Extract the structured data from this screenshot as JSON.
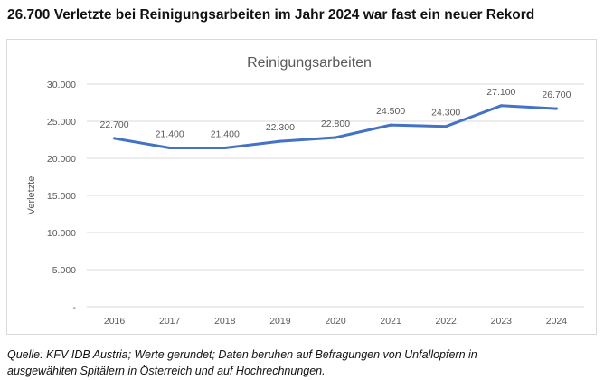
{
  "headline": "26.700 Verletzte bei Reinigungsarbeiten im Jahr 2024 war fast ein neuer Rekord",
  "source": {
    "line1": "Quelle: KFV IDB Austria; Werte gerundet; Daten beruhen auf Befragungen von Unfallopfern in",
    "line2": "ausgewählten Spitälern in Österreich und auf Hochrechnungen."
  },
  "colors": {
    "series_line": "#4472c4",
    "gridline": "#d9d9d9",
    "axis_text": "#595959",
    "title_text": "#595959"
  },
  "chart_data": {
    "type": "line",
    "title": "Reinigungsarbeiten",
    "xlabel": "",
    "ylabel": "Verletzte",
    "categories": [
      "2016",
      "2017",
      "2018",
      "2019",
      "2020",
      "2021",
      "2022",
      "2023",
      "2024"
    ],
    "values": [
      22700,
      21400,
      21400,
      22300,
      22800,
      24500,
      24300,
      27100,
      26700
    ],
    "value_labels": [
      "22.700",
      "21.400",
      "21.400",
      "22.300",
      "22.800",
      "24.500",
      "24.300",
      "27.100",
      "26.700"
    ],
    "ylim": [
      0,
      30000
    ],
    "yticks": [
      0,
      5000,
      10000,
      15000,
      20000,
      25000,
      30000
    ],
    "ytick_labels": [
      "-",
      "5.000",
      "10.000",
      "15.000",
      "20.000",
      "25.000",
      "30.000"
    ],
    "grid": true,
    "legend": "none"
  }
}
